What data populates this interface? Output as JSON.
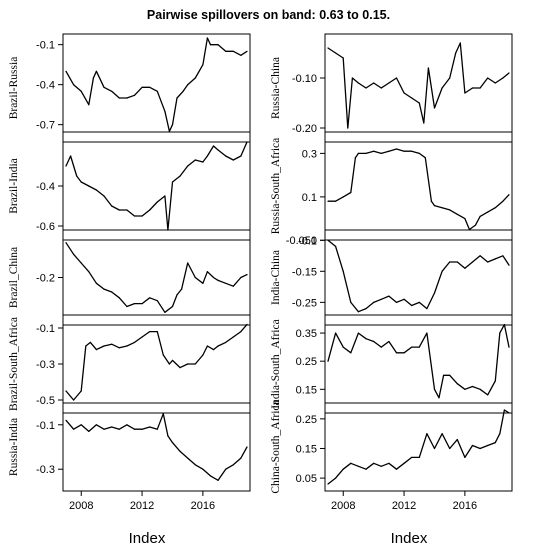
{
  "title": "Pairwise spillovers on band: 0.63 to 0.15.",
  "xlabel": "Index",
  "xticks": [
    "2008",
    "2012",
    "2016"
  ],
  "chart_data": [
    {
      "type": "line",
      "column": "left",
      "ylabel": "Brazil-Russia",
      "ylim": [
        -0.8,
        -0.05
      ],
      "yticks": [
        "-0.1",
        "-0.4",
        "-0.7"
      ],
      "x": [
        2007.0,
        2007.5,
        2008.0,
        2008.5,
        2008.8,
        2009.0,
        2009.5,
        2010.0,
        2010.5,
        2011.0,
        2011.5,
        2012.0,
        2012.5,
        2013.0,
        2013.5,
        2013.8,
        2014.0,
        2014.3,
        2014.7,
        2015.0,
        2015.5,
        2016.0,
        2016.3,
        2016.5,
        2017.0,
        2017.5,
        2018.0,
        2018.5,
        2018.9
      ],
      "y": [
        -0.3,
        -0.4,
        -0.45,
        -0.55,
        -0.35,
        -0.3,
        -0.42,
        -0.45,
        -0.5,
        -0.5,
        -0.48,
        -0.42,
        -0.42,
        -0.45,
        -0.6,
        -0.75,
        -0.7,
        -0.5,
        -0.45,
        -0.4,
        -0.35,
        -0.25,
        -0.05,
        -0.1,
        -0.1,
        -0.15,
        -0.15,
        -0.18,
        -0.15
      ]
    },
    {
      "type": "line",
      "column": "left",
      "ylabel": "Brazil-India",
      "ylim": [
        -0.65,
        -0.15
      ],
      "yticks": [
        "-0.4",
        "-0.6"
      ],
      "x": [
        2007.0,
        2007.3,
        2007.7,
        2008.0,
        2008.5,
        2009.0,
        2009.5,
        2010.0,
        2010.5,
        2011.0,
        2011.5,
        2012.0,
        2012.5,
        2013.0,
        2013.5,
        2013.7,
        2014.0,
        2014.5,
        2015.0,
        2015.5,
        2016.0,
        2016.3,
        2016.7,
        2017.0,
        2017.5,
        2018.0,
        2018.5,
        2018.9
      ],
      "y": [
        -0.3,
        -0.25,
        -0.35,
        -0.38,
        -0.4,
        -0.42,
        -0.45,
        -0.5,
        -0.52,
        -0.52,
        -0.55,
        -0.55,
        -0.52,
        -0.48,
        -0.45,
        -0.62,
        -0.38,
        -0.35,
        -0.3,
        -0.27,
        -0.28,
        -0.25,
        -0.2,
        -0.22,
        -0.25,
        -0.27,
        -0.25,
        -0.18
      ]
    },
    {
      "type": "line",
      "column": "left",
      "ylabel": "Brazil_China",
      "ylim": [
        -0.35,
        -0.05
      ],
      "yticks": [
        "-0.2"
      ],
      "x": [
        2007.0,
        2007.5,
        2008.0,
        2008.5,
        2009.0,
        2009.5,
        2010.0,
        2010.5,
        2011.0,
        2011.5,
        2012.0,
        2012.5,
        2013.0,
        2013.5,
        2014.0,
        2014.3,
        2014.6,
        2015.0,
        2015.5,
        2016.0,
        2016.3,
        2016.7,
        2017.0,
        2017.5,
        2018.0,
        2018.5,
        2018.9
      ],
      "y": [
        -0.08,
        -0.12,
        -0.15,
        -0.18,
        -0.22,
        -0.24,
        -0.25,
        -0.27,
        -0.3,
        -0.29,
        -0.29,
        -0.27,
        -0.28,
        -0.32,
        -0.3,
        -0.26,
        -0.24,
        -0.15,
        -0.2,
        -0.22,
        -0.18,
        -0.2,
        -0.21,
        -0.22,
        -0.23,
        -0.2,
        -0.19
      ]
    },
    {
      "type": "line",
      "column": "left",
      "ylabel": "Brazil-South_Africa",
      "ylim": [
        -0.55,
        -0.05
      ],
      "yticks": [
        "-0.1",
        "-0.3",
        "-0.5"
      ],
      "x": [
        2007.0,
        2007.5,
        2008.0,
        2008.3,
        2008.6,
        2009.0,
        2009.5,
        2010.0,
        2010.5,
        2011.0,
        2011.5,
        2012.0,
        2012.5,
        2013.0,
        2013.4,
        2013.8,
        2014.0,
        2014.5,
        2015.0,
        2015.5,
        2016.0,
        2016.3,
        2016.7,
        2017.0,
        2017.5,
        2018.0,
        2018.5,
        2018.9
      ],
      "y": [
        -0.45,
        -0.5,
        -0.45,
        -0.2,
        -0.18,
        -0.22,
        -0.2,
        -0.19,
        -0.21,
        -0.2,
        -0.18,
        -0.15,
        -0.12,
        -0.12,
        -0.25,
        -0.3,
        -0.28,
        -0.32,
        -0.3,
        -0.3,
        -0.25,
        -0.2,
        -0.22,
        -0.2,
        -0.18,
        -0.15,
        -0.12,
        -0.08
      ]
    },
    {
      "type": "line",
      "column": "left",
      "ylabel": "Russia-India",
      "ylim": [
        -0.38,
        -0.02
      ],
      "yticks": [
        "-0.1",
        "-0.3"
      ],
      "x": [
        2007.0,
        2007.5,
        2008.0,
        2008.5,
        2009.0,
        2009.5,
        2010.0,
        2010.5,
        2011.0,
        2011.5,
        2012.0,
        2012.5,
        2013.0,
        2013.4,
        2013.7,
        2014.0,
        2014.5,
        2015.0,
        2015.5,
        2016.0,
        2016.5,
        2017.0,
        2017.5,
        2018.0,
        2018.5,
        2018.9
      ],
      "y": [
        -0.08,
        -0.12,
        -0.1,
        -0.13,
        -0.1,
        -0.12,
        -0.11,
        -0.12,
        -0.1,
        -0.12,
        -0.12,
        -0.11,
        -0.12,
        -0.05,
        -0.15,
        -0.18,
        -0.22,
        -0.25,
        -0.28,
        -0.3,
        -0.33,
        -0.35,
        -0.3,
        -0.28,
        -0.25,
        -0.2
      ]
    },
    {
      "type": "line",
      "column": "right",
      "ylabel": "Russia-China",
      "ylim": [
        -0.22,
        -0.02
      ],
      "yticks": [
        "-0.10",
        "-0.20"
      ],
      "x": [
        2007.0,
        2007.5,
        2008.0,
        2008.3,
        2008.6,
        2009.0,
        2009.5,
        2010.0,
        2010.5,
        2011.0,
        2011.5,
        2012.0,
        2012.5,
        2013.0,
        2013.3,
        2013.6,
        2014.0,
        2014.5,
        2015.0,
        2015.4,
        2015.7,
        2016.0,
        2016.5,
        2017.0,
        2017.5,
        2018.0,
        2018.5,
        2018.9
      ],
      "y": [
        -0.04,
        -0.05,
        -0.06,
        -0.2,
        -0.1,
        -0.11,
        -0.12,
        -0.11,
        -0.12,
        -0.11,
        -0.1,
        -0.13,
        -0.14,
        -0.15,
        -0.19,
        -0.08,
        -0.16,
        -0.12,
        -0.1,
        -0.05,
        -0.03,
        -0.13,
        -0.12,
        -0.12,
        -0.1,
        -0.11,
        -0.1,
        -0.09
      ]
    },
    {
      "type": "line",
      "column": "right",
      "ylabel": "Russia-South_Africa",
      "ylim": [
        -0.08,
        0.38
      ],
      "yticks": [
        "0.3",
        "0.1",
        "-0.1"
      ],
      "x": [
        2007.0,
        2007.5,
        2008.0,
        2008.5,
        2008.8,
        2009.0,
        2009.5,
        2010.0,
        2010.5,
        2011.0,
        2011.5,
        2012.0,
        2012.5,
        2013.0,
        2013.4,
        2013.8,
        2014.0,
        2014.5,
        2015.0,
        2015.5,
        2016.0,
        2016.3,
        2016.7,
        2017.0,
        2017.5,
        2018.0,
        2018.5,
        2018.9
      ],
      "y": [
        0.08,
        0.08,
        0.1,
        0.12,
        0.28,
        0.3,
        0.3,
        0.31,
        0.3,
        0.31,
        0.32,
        0.31,
        0.31,
        0.3,
        0.28,
        0.08,
        0.06,
        0.05,
        0.04,
        0.02,
        0.0,
        -0.05,
        -0.03,
        0.01,
        0.03,
        0.05,
        0.08,
        0.11
      ]
    },
    {
      "type": "line",
      "column": "right",
      "ylabel": "India-China",
      "ylim": [
        -0.31,
        -0.03
      ],
      "yticks": [
        "-0.050",
        "-0.15",
        "-0.25"
      ],
      "x": [
        2007.0,
        2007.5,
        2008.0,
        2008.5,
        2009.0,
        2009.5,
        2010.0,
        2010.5,
        2011.0,
        2011.5,
        2012.0,
        2012.5,
        2013.0,
        2013.5,
        2014.0,
        2014.5,
        2015.0,
        2015.5,
        2016.0,
        2016.5,
        2017.0,
        2017.5,
        2018.0,
        2018.5,
        2018.9
      ],
      "y": [
        -0.05,
        -0.07,
        -0.15,
        -0.25,
        -0.28,
        -0.27,
        -0.25,
        -0.24,
        -0.23,
        -0.25,
        -0.24,
        -0.26,
        -0.25,
        -0.27,
        -0.22,
        -0.15,
        -0.12,
        -0.12,
        -0.14,
        -0.12,
        -0.1,
        -0.12,
        -0.11,
        -0.1,
        -0.13
      ]
    },
    {
      "type": "line",
      "column": "right",
      "ylabel": "India-South_Africa",
      "ylim": [
        0.08,
        0.4
      ],
      "yticks": [
        "0.35",
        "0.25",
        "0.15"
      ],
      "x": [
        2007.0,
        2007.5,
        2008.0,
        2008.5,
        2009.0,
        2009.5,
        2010.0,
        2010.5,
        2011.0,
        2011.5,
        2012.0,
        2012.5,
        2013.0,
        2013.5,
        2014.0,
        2014.3,
        2014.6,
        2015.0,
        2015.5,
        2016.0,
        2016.5,
        2017.0,
        2017.5,
        2018.0,
        2018.3,
        2018.6,
        2018.9
      ],
      "y": [
        0.25,
        0.35,
        0.3,
        0.28,
        0.35,
        0.33,
        0.32,
        0.3,
        0.32,
        0.28,
        0.28,
        0.3,
        0.3,
        0.35,
        0.15,
        0.12,
        0.2,
        0.2,
        0.17,
        0.15,
        0.16,
        0.15,
        0.13,
        0.18,
        0.35,
        0.38,
        0.3
      ]
    },
    {
      "type": "line",
      "column": "right",
      "ylabel": "China-South_Africa",
      "ylim": [
        0.02,
        0.29
      ],
      "yticks": [
        "0.25",
        "0.15",
        "0.05"
      ],
      "x": [
        2007.0,
        2007.5,
        2008.0,
        2008.5,
        2009.0,
        2009.5,
        2010.0,
        2010.5,
        2011.0,
        2011.5,
        2012.0,
        2012.5,
        2013.0,
        2013.5,
        2014.0,
        2014.5,
        2015.0,
        2015.5,
        2016.0,
        2016.5,
        2017.0,
        2017.5,
        2018.0,
        2018.3,
        2018.6,
        2018.9
      ],
      "y": [
        0.03,
        0.05,
        0.08,
        0.1,
        0.09,
        0.08,
        0.1,
        0.09,
        0.1,
        0.08,
        0.1,
        0.12,
        0.12,
        0.2,
        0.15,
        0.2,
        0.15,
        0.18,
        0.12,
        0.16,
        0.15,
        0.16,
        0.17,
        0.2,
        0.28,
        0.27
      ]
    }
  ]
}
